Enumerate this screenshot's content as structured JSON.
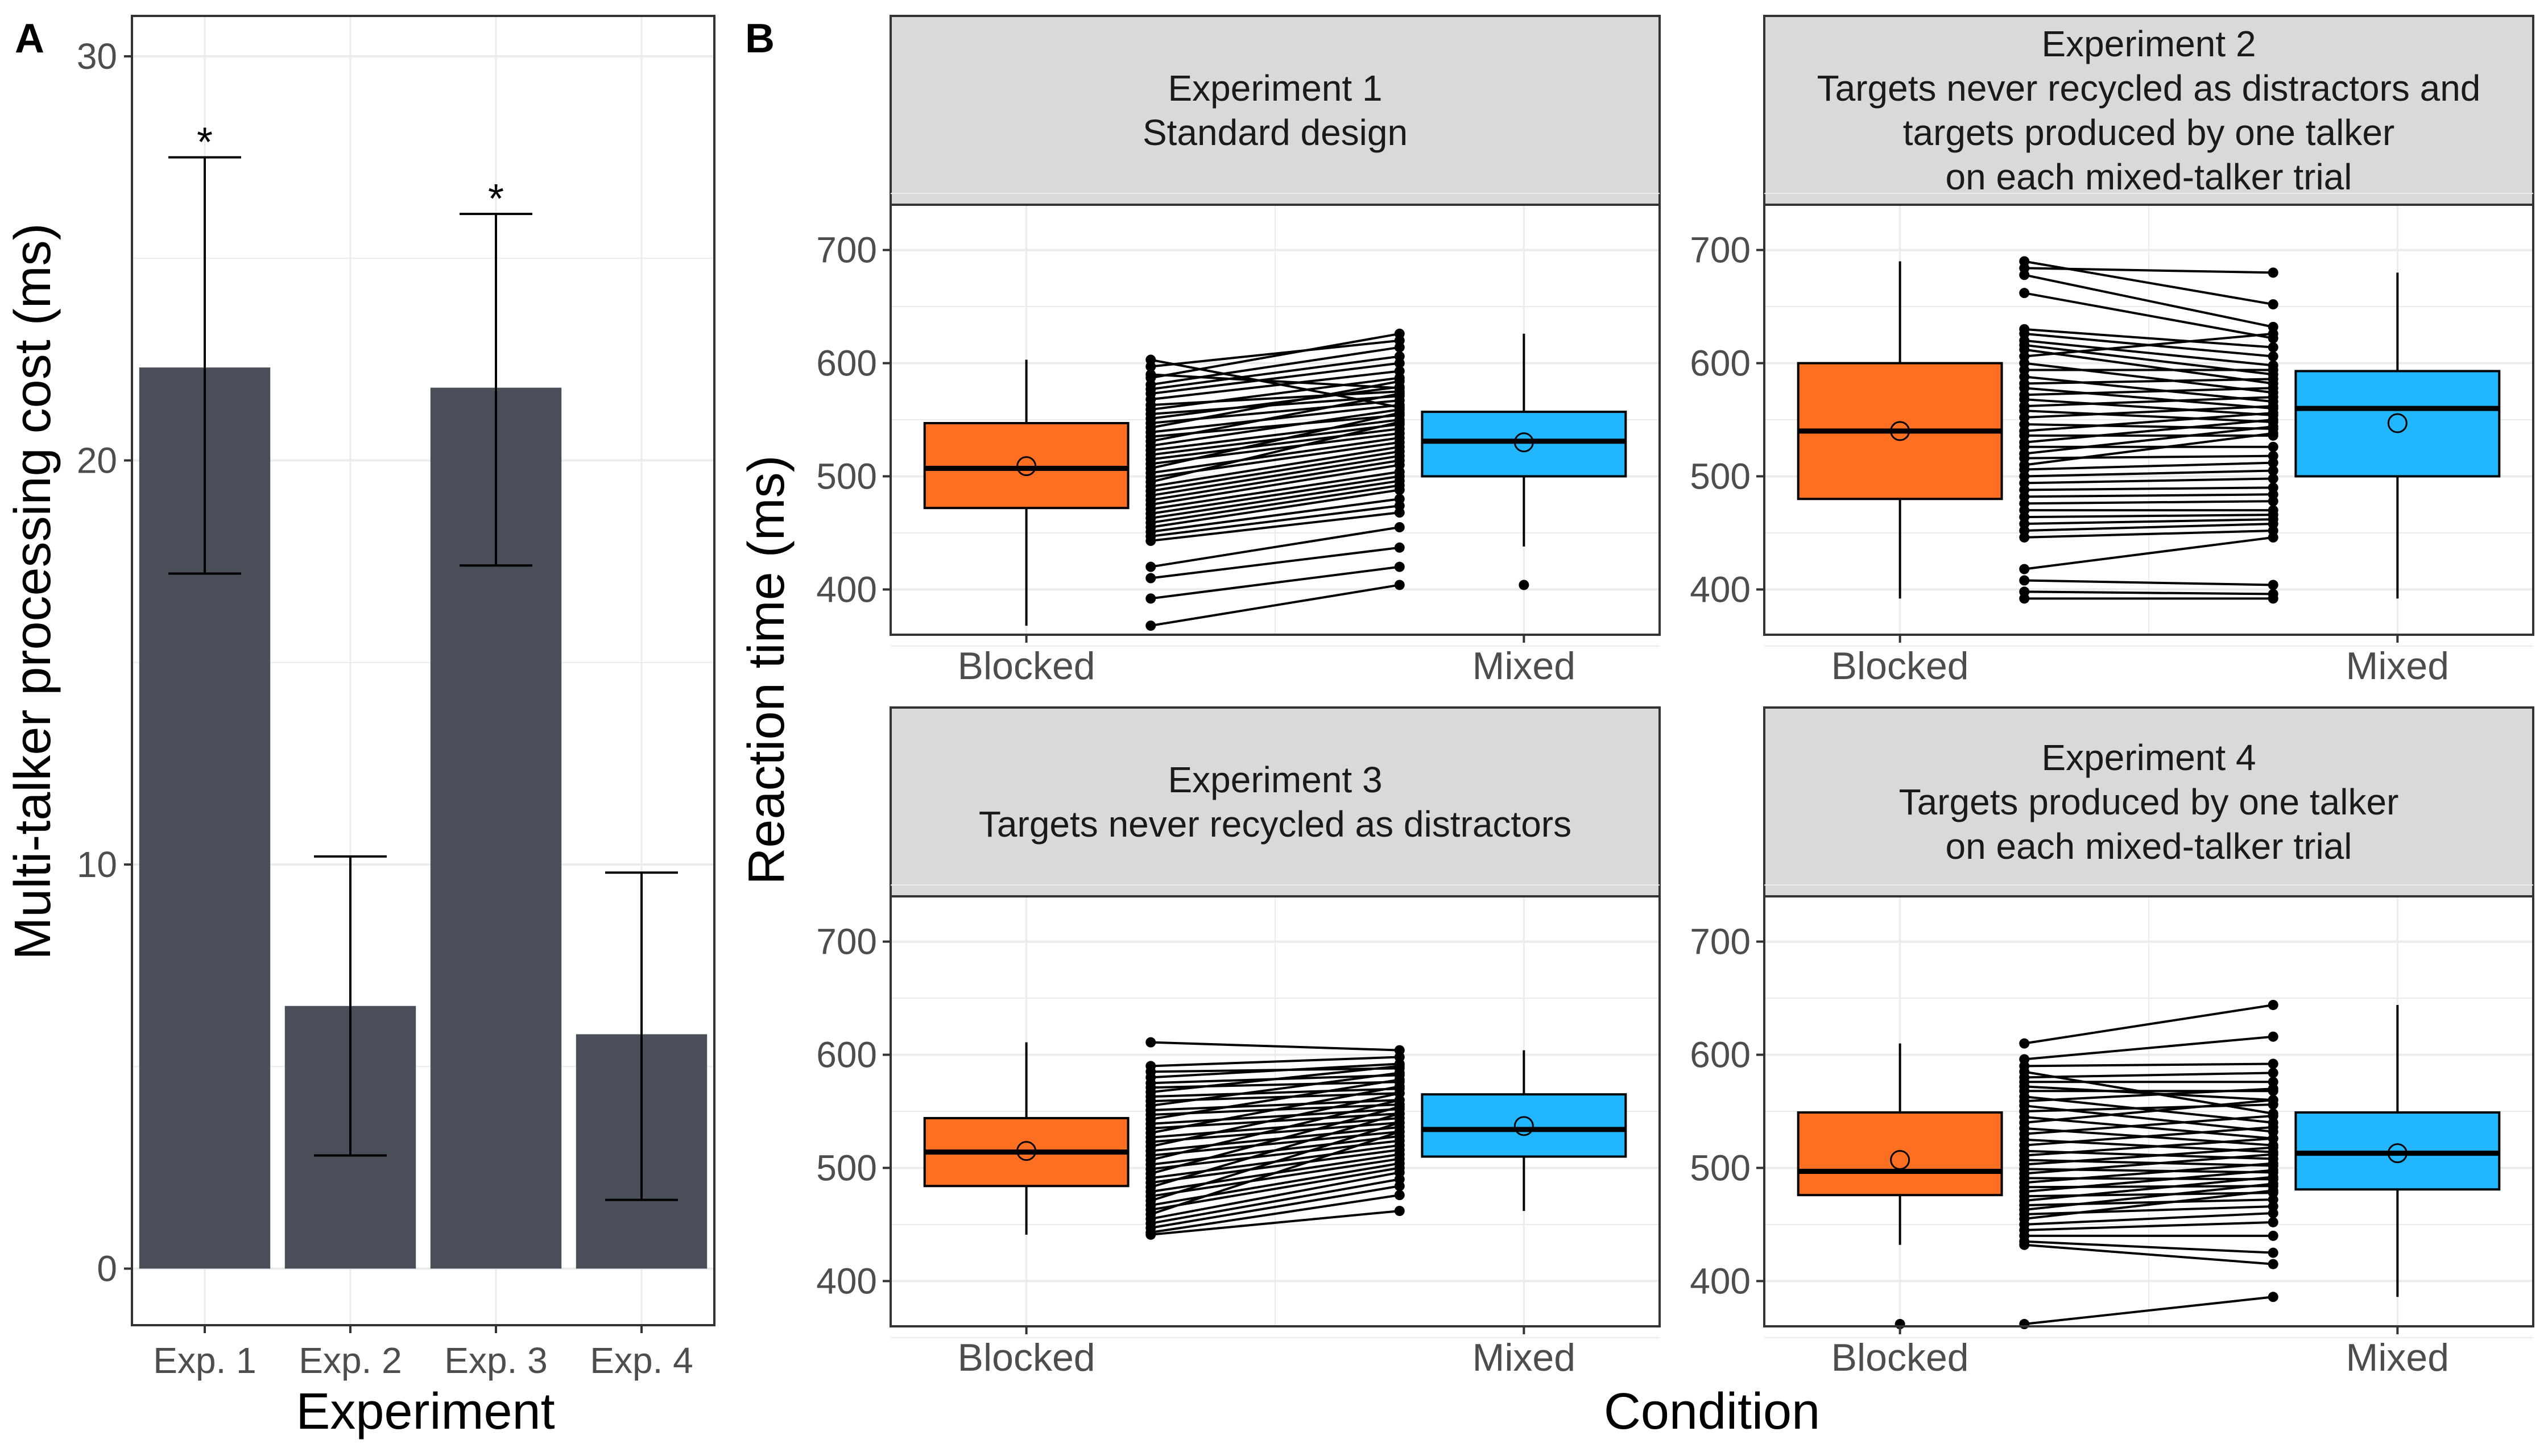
{
  "panel_labels": {
    "a": "A",
    "b": "B"
  },
  "colors": {
    "bar": "#4a4e58",
    "blocked_fill": "#ff6f21",
    "mixed_fill": "#22b6ff",
    "strip_fill": "#d9d9d9",
    "grid": "#ebebeb",
    "frame": "#333333",
    "text": "#4d4d4d"
  },
  "chart_data": [
    {
      "id": "A",
      "type": "bar",
      "xlabel": "Experiment",
      "ylabel": "Multi-talker processing cost (ms)",
      "ylim": [
        -1.4,
        31.0
      ],
      "yticks": [
        "0",
        "10",
        "20",
        "30"
      ],
      "categories": [
        "Exp. 1",
        "Exp. 2",
        "Exp. 3",
        "Exp. 4"
      ],
      "values": [
        22.3,
        6.5,
        21.8,
        5.8
      ],
      "error_low": [
        17.2,
        2.8,
        17.4,
        1.7
      ],
      "error_high": [
        27.5,
        10.2,
        26.1,
        9.8
      ],
      "annotations": [
        "*",
        "",
        "*",
        ""
      ],
      "grid": true
    },
    {
      "id": "B",
      "type": "boxplot_with_paired_lines",
      "xlabel": "Condition",
      "ylabel": "Reaction time (ms)",
      "ylim": [
        360,
        740
      ],
      "yticks": [
        "400",
        "500",
        "600",
        "700"
      ],
      "categories": [
        "Blocked",
        "Mixed"
      ],
      "grid": true,
      "facets": [
        {
          "title_lines": [
            "Experiment 1",
            "Standard design"
          ],
          "blocked": {
            "min": 368,
            "q1": 472,
            "median": 507,
            "q3": 547,
            "max": 603,
            "mean": 509,
            "outliers": []
          },
          "mixed": {
            "min": 438,
            "q1": 500,
            "median": 531,
            "q3": 557,
            "max": 626,
            "mean": 530,
            "outliers": [
              404
            ]
          },
          "pairs": [
            [
              603,
              561
            ],
            [
              597,
              620
            ],
            [
              590,
              578
            ],
            [
              587,
              626
            ],
            [
              581,
              614
            ],
            [
              577,
              606
            ],
            [
              573,
              600
            ],
            [
              568,
              593
            ],
            [
              563,
              575
            ],
            [
              559,
              587
            ],
            [
              555,
              571
            ],
            [
              551,
              579
            ],
            [
              547,
              567
            ],
            [
              543,
              584
            ],
            [
              539,
              563
            ],
            [
              535,
              554
            ],
            [
              531,
              573
            ],
            [
              527,
              559
            ],
            [
              523,
              550
            ],
            [
              519,
              546
            ],
            [
              515,
              542
            ],
            [
              511,
              538
            ],
            [
              507,
              556
            ],
            [
              503,
              534
            ],
            [
              499,
              530
            ],
            [
              495,
              548
            ],
            [
              491,
              526
            ],
            [
              487,
              522
            ],
            [
              483,
              518
            ],
            [
              479,
              514
            ],
            [
              475,
              510
            ],
            [
              471,
              504
            ],
            [
              467,
              500
            ],
            [
              463,
              496
            ],
            [
              459,
              492
            ],
            [
              455,
              488
            ],
            [
              451,
              480
            ],
            [
              447,
              474
            ],
            [
              443,
              468
            ],
            [
              420,
              455
            ],
            [
              410,
              437
            ],
            [
              392,
              420
            ],
            [
              368,
              404
            ]
          ]
        },
        {
          "title_lines": [
            "Experiment 2",
            "Targets never recycled as distractors and",
            "targets produced by one talker",
            "on each mixed-talker trial"
          ],
          "blocked": {
            "min": 392,
            "q1": 480,
            "median": 540,
            "q3": 600,
            "max": 690,
            "mean": 540,
            "outliers": []
          },
          "mixed": {
            "min": 392,
            "q1": 500,
            "median": 560,
            "q3": 593,
            "max": 680,
            "mean": 547,
            "outliers": []
          },
          "pairs": [
            [
              690,
              652
            ],
            [
              684,
              680
            ],
            [
              678,
              632
            ],
            [
              662,
              622
            ],
            [
              630,
              614
            ],
            [
              626,
              606
            ],
            [
              620,
              598
            ],
            [
              616,
              590
            ],
            [
              612,
              582
            ],
            [
              606,
              626
            ],
            [
              600,
              574
            ],
            [
              594,
              594
            ],
            [
              588,
              566
            ],
            [
              582,
              586
            ],
            [
              578,
              560
            ],
            [
              572,
              578
            ],
            [
              568,
              554
            ],
            [
              562,
              570
            ],
            [
              558,
              548
            ],
            [
              552,
              562
            ],
            [
              546,
              542
            ],
            [
              540,
              556
            ],
            [
              536,
              536
            ],
            [
              530,
              550
            ],
            [
              526,
              526
            ],
            [
              520,
              544
            ],
            [
              516,
              518
            ],
            [
              510,
              538
            ],
            [
              506,
              512
            ],
            [
              500,
              505
            ],
            [
              494,
              498
            ],
            [
              488,
              490
            ],
            [
              482,
              484
            ],
            [
              476,
              478
            ],
            [
              470,
              470
            ],
            [
              464,
              466
            ],
            [
              458,
              462
            ],
            [
              452,
              458
            ],
            [
              446,
              452
            ],
            [
              418,
              446
            ],
            [
              408,
              404
            ],
            [
              398,
              396
            ],
            [
              392,
              392
            ]
          ]
        },
        {
          "title_lines": [
            "Experiment 3",
            "Targets never recycled as distractors"
          ],
          "blocked": {
            "min": 441,
            "q1": 484,
            "median": 514,
            "q3": 544,
            "max": 611,
            "mean": 515,
            "outliers": []
          },
          "mixed": {
            "min": 462,
            "q1": 510,
            "median": 534,
            "q3": 565,
            "max": 604,
            "mean": 537,
            "outliers": []
          },
          "pairs": [
            [
              611,
              604
            ],
            [
              590,
              598
            ],
            [
              585,
              588
            ],
            [
              580,
              592
            ],
            [
              575,
              582
            ],
            [
              571,
              576
            ],
            [
              567,
              590
            ],
            [
              563,
              570
            ],
            [
              559,
              566
            ],
            [
              555,
              584
            ],
            [
              551,
              560
            ],
            [
              547,
              556
            ],
            [
              543,
              578
            ],
            [
              539,
              552
            ],
            [
              535,
              548
            ],
            [
              531,
              572
            ],
            [
              527,
              544
            ],
            [
              523,
              540
            ],
            [
              519,
              566
            ],
            [
              515,
              536
            ],
            [
              511,
              532
            ],
            [
              507,
              560
            ],
            [
              503,
              528
            ],
            [
              499,
              524
            ],
            [
              495,
              554
            ],
            [
              491,
              520
            ],
            [
              487,
              516
            ],
            [
              483,
              548
            ],
            [
              479,
              512
            ],
            [
              475,
              508
            ],
            [
              471,
              540
            ],
            [
              467,
              504
            ],
            [
              463,
              500
            ],
            [
              459,
              532
            ],
            [
              455,
              496
            ],
            [
              451,
              490
            ],
            [
              447,
              484
            ],
            [
              443,
              476
            ],
            [
              441,
              462
            ]
          ]
        },
        {
          "title_lines": [
            "Experiment 4",
            "Targets produced by one talker",
            "on each mixed-talker trial"
          ],
          "blocked": {
            "min": 432,
            "q1": 476,
            "median": 497,
            "q3": 549,
            "max": 610,
            "mean": 507,
            "outliers": [
              362
            ]
          },
          "mixed": {
            "min": 386,
            "q1": 481,
            "median": 513,
            "q3": 549,
            "max": 644,
            "mean": 513,
            "outliers": []
          },
          "pairs": [
            [
              610,
              644
            ],
            [
              596,
              616
            ],
            [
              590,
              592
            ],
            [
              585,
              548
            ],
            [
              580,
              584
            ],
            [
              576,
              576
            ],
            [
              572,
              560
            ],
            [
              568,
              568
            ],
            [
              563,
              540
            ],
            [
              559,
              570
            ],
            [
              555,
              532
            ],
            [
              550,
              556
            ],
            [
              545,
              526
            ],
            [
              540,
              560
            ],
            [
              535,
              520
            ],
            [
              530,
              546
            ],
            [
              525,
              514
            ],
            [
              520,
              536
            ],
            [
              515,
              508
            ],
            [
              511,
              526
            ],
            [
              507,
              502
            ],
            [
              503,
              518
            ],
            [
              499,
              496
            ],
            [
              495,
              512
            ],
            [
              491,
              490
            ],
            [
              487,
              504
            ],
            [
              483,
              484
            ],
            [
              479,
              498
            ],
            [
              475,
              478
            ],
            [
              471,
              492
            ],
            [
              467,
              472
            ],
            [
              463,
              486
            ],
            [
              459,
              466
            ],
            [
              455,
              480
            ],
            [
              450,
              460
            ],
            [
              445,
              452
            ],
            [
              440,
              440
            ],
            [
              435,
              425
            ],
            [
              432,
              415
            ],
            [
              362,
              386
            ]
          ]
        }
      ]
    }
  ]
}
